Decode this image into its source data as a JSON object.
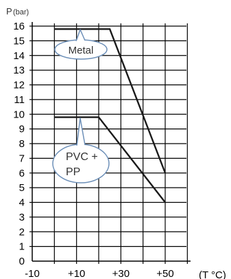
{
  "chart_data": {
    "type": "line",
    "ylabel_main": "P",
    "ylabel_unit": "(bar)",
    "xlabel": "(T °C)",
    "x_ticks": [
      "-10",
      "+10",
      "+30",
      "+50"
    ],
    "y_ticks": [
      "0",
      "1",
      "2",
      "3",
      "4",
      "5",
      "6",
      "7",
      "8",
      "9",
      "10",
      "11",
      "12",
      "13",
      "14",
      "15",
      "16"
    ],
    "xlim": [
      -10,
      58
    ],
    "ylim": [
      0,
      16
    ],
    "grid": true,
    "series": [
      {
        "name": "Metal",
        "points": [
          [
            0,
            15.8
          ],
          [
            25,
            15.8
          ],
          [
            50,
            6
          ]
        ]
      },
      {
        "name": "PVC + PP",
        "points": [
          [
            0,
            9.8
          ],
          [
            20,
            9.8
          ],
          [
            50,
            4
          ]
        ]
      }
    ],
    "annotations": [
      {
        "series": "Metal",
        "lines": [
          "Metal"
        ]
      },
      {
        "series": "PVC + PP",
        "lines": [
          "PVC +",
          "PP"
        ]
      }
    ]
  }
}
